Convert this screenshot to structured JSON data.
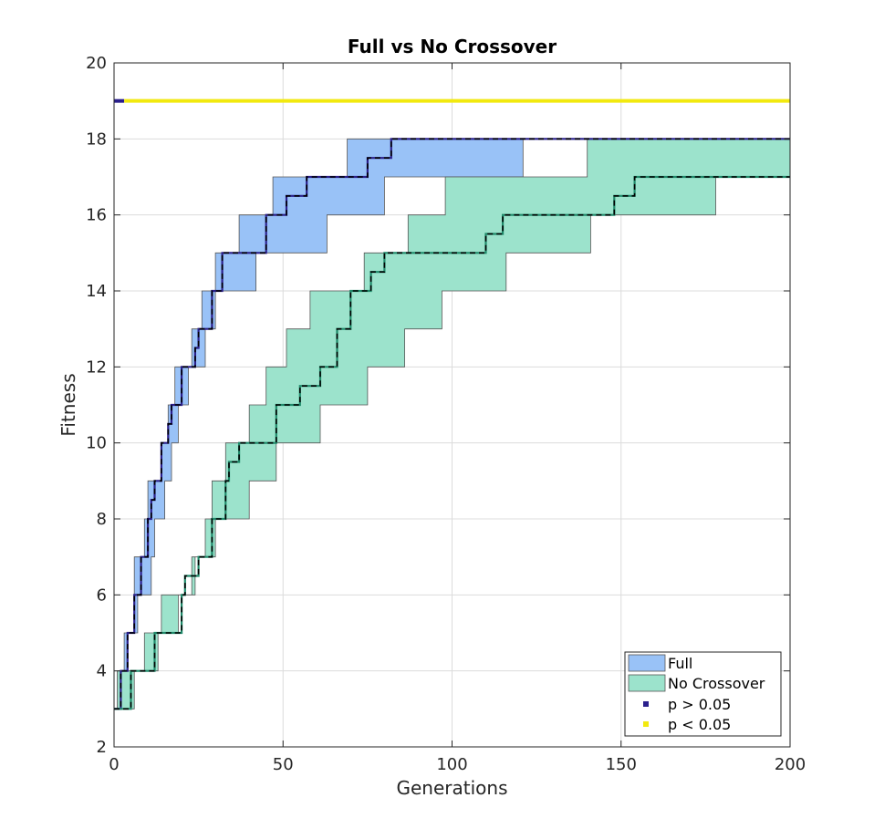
{
  "chart_data": {
    "type": "area",
    "title": "Full vs No Crossover",
    "xlabel": "Generations",
    "ylabel": "Fitness",
    "xlim": [
      0,
      200
    ],
    "ylim": [
      2,
      20
    ],
    "xticks": [
      0,
      50,
      100,
      150,
      200
    ],
    "yticks": [
      2,
      4,
      6,
      8,
      10,
      12,
      14,
      16,
      18,
      20
    ],
    "grid": true,
    "legend_position": "bottom-right",
    "series": [
      {
        "name": "Full",
        "color": "#99c2f7",
        "median": [
          [
            0,
            3
          ],
          [
            2,
            4
          ],
          [
            4,
            5
          ],
          [
            6,
            6
          ],
          [
            8,
            7
          ],
          [
            10,
            8
          ],
          [
            11,
            8.5
          ],
          [
            12,
            9
          ],
          [
            14,
            10
          ],
          [
            16,
            10.5
          ],
          [
            17,
            11
          ],
          [
            20,
            12
          ],
          [
            24,
            12.5
          ],
          [
            25,
            13
          ],
          [
            29,
            14
          ],
          [
            32,
            15
          ],
          [
            45,
            16
          ],
          [
            51,
            16.5
          ],
          [
            57,
            17
          ],
          [
            75,
            17.5
          ],
          [
            82,
            18
          ],
          [
            200,
            18
          ]
        ],
        "upper": [
          [
            0,
            3
          ],
          [
            1,
            4
          ],
          [
            3,
            5
          ],
          [
            6,
            7
          ],
          [
            9,
            8
          ],
          [
            10,
            9
          ],
          [
            14,
            10
          ],
          [
            16,
            11
          ],
          [
            18,
            12
          ],
          [
            23,
            13
          ],
          [
            26,
            14
          ],
          [
            30,
            15
          ],
          [
            37,
            16
          ],
          [
            47,
            17
          ],
          [
            69,
            18
          ],
          [
            200,
            18
          ]
        ],
        "lower": [
          [
            0,
            3
          ],
          [
            2,
            3
          ],
          [
            4,
            5
          ],
          [
            7,
            6
          ],
          [
            11,
            7
          ],
          [
            12,
            8
          ],
          [
            15,
            9
          ],
          [
            17,
            10
          ],
          [
            19,
            11
          ],
          [
            22,
            12
          ],
          [
            27,
            13
          ],
          [
            30,
            14
          ],
          [
            42,
            15
          ],
          [
            63,
            16
          ],
          [
            80,
            17
          ],
          [
            121,
            18
          ],
          [
            200,
            18
          ]
        ]
      },
      {
        "name": "No Crossover",
        "color": "#9ce3cc",
        "median": [
          [
            0,
            3
          ],
          [
            5,
            4
          ],
          [
            12,
            5
          ],
          [
            20,
            6
          ],
          [
            21,
            6.5
          ],
          [
            25,
            7
          ],
          [
            29,
            8
          ],
          [
            33,
            9
          ],
          [
            34,
            9.5
          ],
          [
            37,
            10
          ],
          [
            48,
            11
          ],
          [
            55,
            11.5
          ],
          [
            61,
            12
          ],
          [
            66,
            13
          ],
          [
            70,
            14
          ],
          [
            76,
            14.5
          ],
          [
            80,
            15
          ],
          [
            110,
            15.5
          ],
          [
            115,
            16
          ],
          [
            148,
            16.5
          ],
          [
            154,
            17
          ],
          [
            200,
            17
          ]
        ],
        "upper": [
          [
            0,
            3
          ],
          [
            1,
            4
          ],
          [
            9,
            5
          ],
          [
            14,
            6
          ],
          [
            23,
            7
          ],
          [
            27,
            8
          ],
          [
            29,
            9
          ],
          [
            33,
            10
          ],
          [
            40,
            11
          ],
          [
            45,
            12
          ],
          [
            51,
            13
          ],
          [
            58,
            14
          ],
          [
            74,
            15
          ],
          [
            87,
            16
          ],
          [
            98,
            17
          ],
          [
            140,
            18
          ],
          [
            200,
            18
          ]
        ],
        "lower": [
          [
            0,
            3
          ],
          [
            4,
            3
          ],
          [
            6,
            4
          ],
          [
            13,
            5
          ],
          [
            19,
            6
          ],
          [
            24,
            7
          ],
          [
            30,
            8
          ],
          [
            40,
            9
          ],
          [
            48,
            10
          ],
          [
            61,
            11
          ],
          [
            75,
            12
          ],
          [
            86,
            13
          ],
          [
            97,
            14
          ],
          [
            116,
            15
          ],
          [
            141,
            16
          ],
          [
            178,
            17
          ],
          [
            200,
            17
          ]
        ]
      }
    ],
    "significance": [
      {
        "label": "p > 0.05",
        "color": "#2a1f8c",
        "x_start": 0,
        "x_end": 3,
        "y": 19
      },
      {
        "label": "p < 0.05",
        "color": "#f2e90f",
        "x_start": 3,
        "x_end": 200,
        "y": 19
      }
    ]
  }
}
